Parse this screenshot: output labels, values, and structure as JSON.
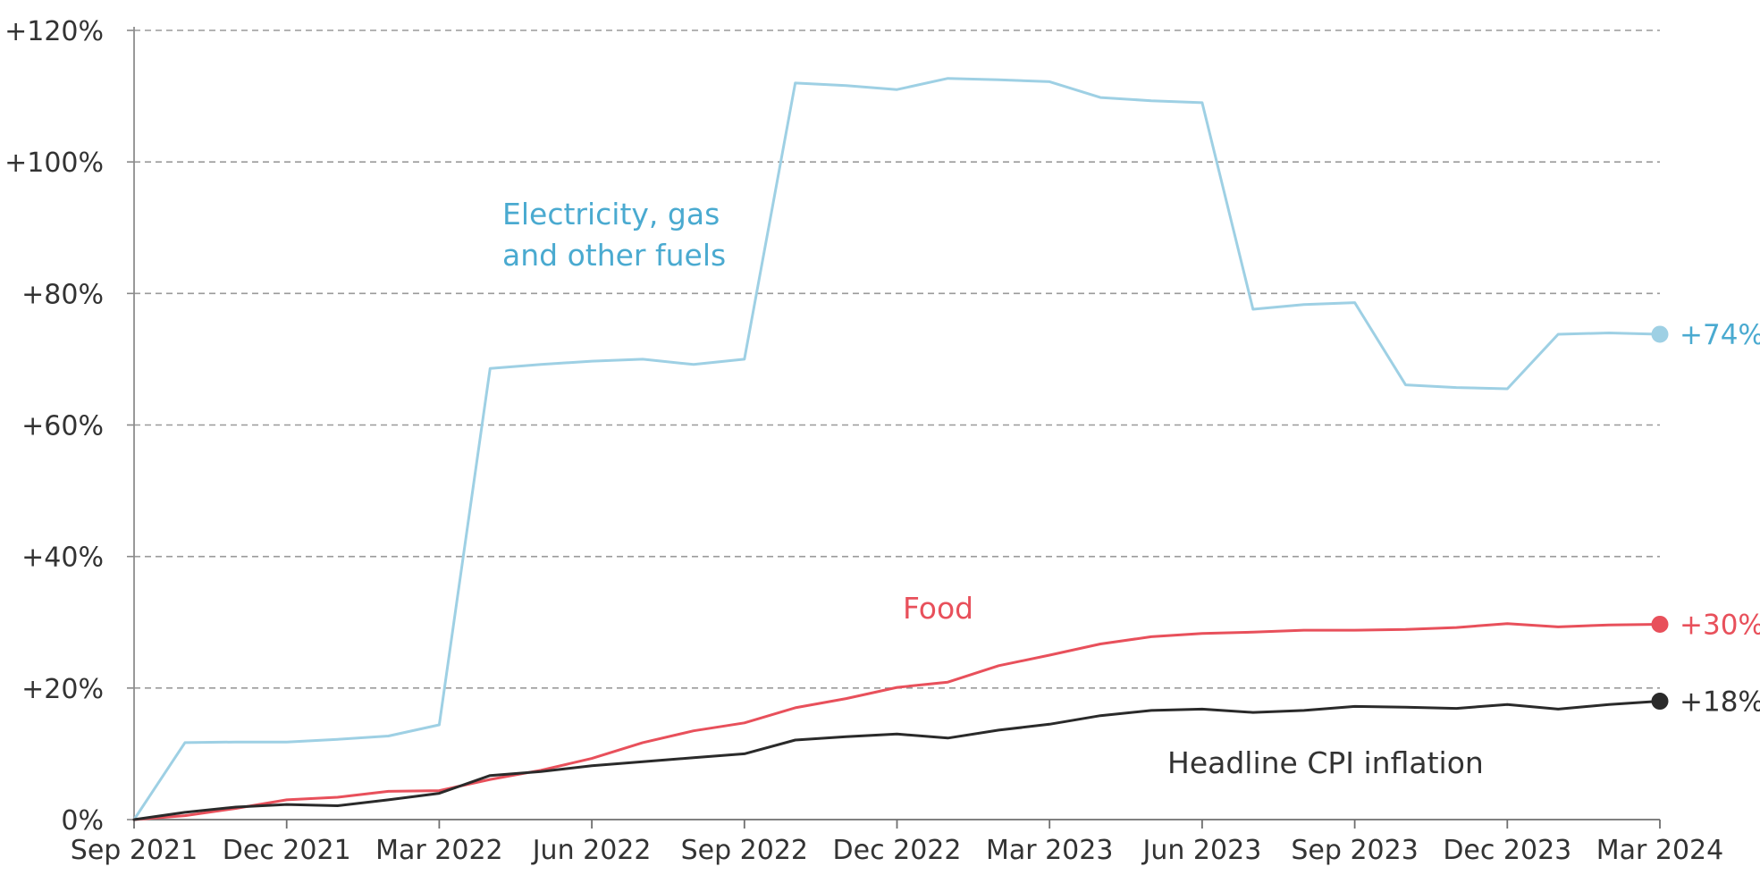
{
  "chart_data": {
    "type": "line",
    "title": "",
    "xlabel": "",
    "ylabel": "",
    "ylim": [
      0,
      120
    ],
    "y_ticks": [
      {
        "value": 0,
        "label": "0%"
      },
      {
        "value": 20,
        "label": "+20%"
      },
      {
        "value": 40,
        "label": "+40%"
      },
      {
        "value": 60,
        "label": "+60%"
      },
      {
        "value": 80,
        "label": "+80%"
      },
      {
        "value": 100,
        "label": "+100%"
      },
      {
        "value": 120,
        "label": "+120%"
      }
    ],
    "x_ticks": [
      {
        "index": 0,
        "label": "Sep 2021"
      },
      {
        "index": 3,
        "label": "Dec 2021"
      },
      {
        "index": 6,
        "label": "Mar 2022"
      },
      {
        "index": 9,
        "label": "Jun 2022"
      },
      {
        "index": 12,
        "label": "Sep 2022"
      },
      {
        "index": 15,
        "label": "Dec 2022"
      },
      {
        "index": 18,
        "label": "Mar 2023"
      },
      {
        "index": 21,
        "label": "Jun 2023"
      },
      {
        "index": 24,
        "label": "Sep 2023"
      },
      {
        "index": 27,
        "label": "Dec 2023"
      },
      {
        "index": 30,
        "label": "Mar 2024"
      }
    ],
    "x": [
      "Sep 2021",
      "Oct 2021",
      "Nov 2021",
      "Dec 2021",
      "Jan 2022",
      "Feb 2022",
      "Mar 2022",
      "Apr 2022",
      "May 2022",
      "Jun 2022",
      "Jul 2022",
      "Aug 2022",
      "Sep 2022",
      "Oct 2022",
      "Nov 2022",
      "Dec 2022",
      "Jan 2023",
      "Feb 2023",
      "Mar 2023",
      "Apr 2023",
      "May 2023",
      "Jun 2023",
      "Jul 2023",
      "Aug 2023",
      "Sep 2023",
      "Oct 2023",
      "Nov 2023",
      "Dec 2023",
      "Jan 2024",
      "Feb 2024",
      "Mar 2024"
    ],
    "grid": "horizontal dashed",
    "series": [
      {
        "name": "Electricity, gas and other fuels",
        "label_lines": [
          "Electricity, gas",
          "and other fuels"
        ],
        "color": "#9ed0e4",
        "label_color": "#4aaad0",
        "end_label": "+74%",
        "values": [
          0,
          11.7,
          11.8,
          11.8,
          12.2,
          12.7,
          14.4,
          68.6,
          69.2,
          69.7,
          70.0,
          69.2,
          70.0,
          112.0,
          111.6,
          111.0,
          112.7,
          112.5,
          112.2,
          109.8,
          109.3,
          109.0,
          77.6,
          78.3,
          78.6,
          66.1,
          65.7,
          65.5,
          73.8,
          74.0,
          73.8
        ]
      },
      {
        "name": "Food",
        "label_lines": [
          "Food"
        ],
        "color": "#e8505b",
        "label_color": "#e8505b",
        "end_label": "+30%",
        "values": [
          0,
          0.6,
          1.7,
          3.0,
          3.4,
          4.3,
          4.4,
          6.1,
          7.5,
          9.3,
          11.7,
          13.5,
          14.7,
          17.0,
          18.4,
          20.1,
          20.9,
          23.4,
          25.0,
          26.7,
          27.8,
          28.3,
          28.5,
          28.8,
          28.8,
          28.9,
          29.2,
          29.8,
          29.3,
          29.6,
          29.7
        ]
      },
      {
        "name": "Headline CPI inflation",
        "label_lines": [
          "Headline CPI inflation"
        ],
        "color": "#2a2a2a",
        "label_color": "#333333",
        "end_label": "+18%",
        "values": [
          0,
          1.1,
          1.9,
          2.3,
          2.1,
          3.0,
          4.0,
          6.7,
          7.3,
          8.2,
          8.8,
          9.4,
          10.0,
          12.1,
          12.6,
          13.0,
          12.4,
          13.6,
          14.5,
          15.8,
          16.6,
          16.8,
          16.3,
          16.6,
          17.2,
          17.1,
          16.9,
          17.5,
          16.8,
          17.5,
          18.0
        ]
      }
    ]
  }
}
